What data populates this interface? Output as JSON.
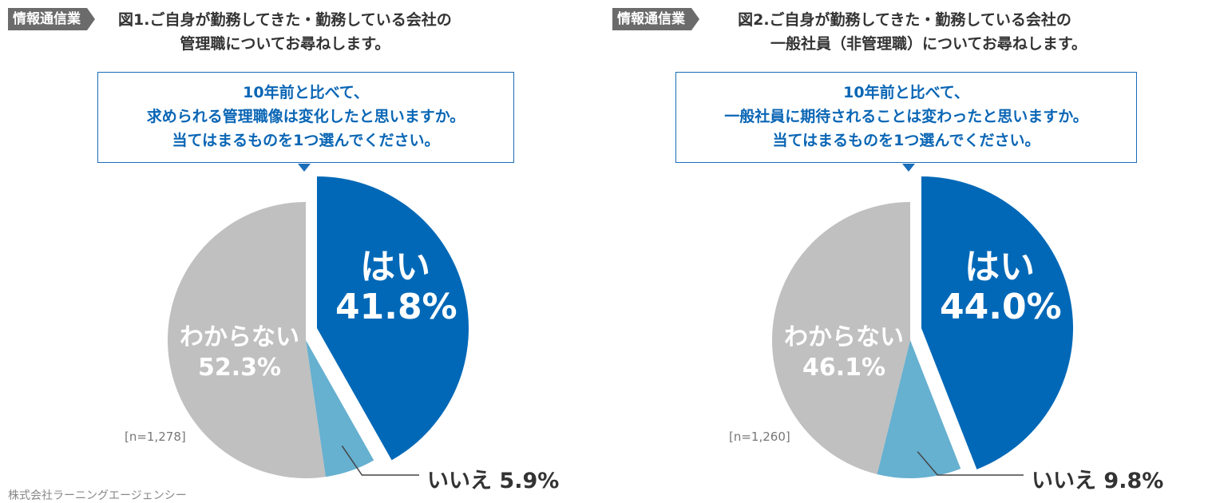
{
  "credit": "株式会社ラーニングエージェンシー",
  "colors": {
    "yes": "#0068b7",
    "no": "#66b0d0",
    "dk": "#bfc0bf",
    "tag": "#6b6b6b"
  },
  "chart_data": [
    {
      "type": "pie",
      "tag": "情報通信業",
      "title_line1": "図1.ご自身が勤務してきた・勤務している会社の",
      "title_line2": "管理職についてお尋ねします。",
      "question": [
        "10年前と比べて、",
        "求められる管理職像は変化したと思いますか。",
        "当てはまるものを1つ選んでください。"
      ],
      "n": "[n=1,278]",
      "slices": [
        {
          "label": "はい",
          "value": 41.8,
          "text": "41.8%"
        },
        {
          "label": "いいえ",
          "value": 5.9,
          "text": "5.9%"
        },
        {
          "label": "わからない",
          "value": 52.3,
          "text": "52.3%"
        }
      ]
    },
    {
      "type": "pie",
      "tag": "情報通信業",
      "title_line1": "図2.ご自身が勤務してきた・勤務している会社の",
      "title_line2": "一般社員（非管理職）についてお尋ねします。",
      "question": [
        "10年前と比べて、",
        "一般社員に期待されることは変わったと思いますか。",
        "当てはまるものを1つ選んでください。"
      ],
      "n": "[n=1,260]",
      "slices": [
        {
          "label": "はい",
          "value": 44.0,
          "text": "44.0%"
        },
        {
          "label": "いいえ",
          "value": 9.8,
          "text": "9.8%"
        },
        {
          "label": "わからない",
          "value": 46.1,
          "text": "46.1%"
        }
      ]
    }
  ]
}
